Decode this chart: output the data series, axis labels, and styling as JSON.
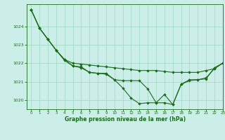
{
  "title": "Graphe pression niveau de la mer (hPa)",
  "background_color": "#cceee8",
  "grid_color": "#aaddcc",
  "line_color": "#1a6b1a",
  "marker_color": "#1a6b1a",
  "xlim": [
    -0.5,
    23
  ],
  "ylim": [
    1019.5,
    1025.2
  ],
  "yticks": [
    1020,
    1021,
    1022,
    1023,
    1024
  ],
  "xticks": [
    0,
    1,
    2,
    3,
    4,
    5,
    6,
    7,
    8,
    9,
    10,
    11,
    12,
    13,
    14,
    15,
    16,
    17,
    18,
    19,
    20,
    21,
    22,
    23
  ],
  "series": [
    [
      1024.9,
      1023.9,
      1023.3,
      1022.7,
      1022.2,
      1022.0,
      1021.95,
      1021.9,
      1021.85,
      1021.8,
      1021.75,
      1021.7,
      1021.65,
      1021.6,
      1021.6,
      1021.6,
      1021.55,
      1021.5,
      1021.5,
      1021.5,
      1021.5,
      1021.6,
      1021.7,
      1022.0
    ],
    [
      1024.9,
      1023.9,
      1023.3,
      1022.7,
      1022.15,
      1021.85,
      1021.75,
      1021.5,
      1021.45,
      1021.4,
      1021.1,
      1021.05,
      1021.05,
      1021.05,
      1020.6,
      1019.85,
      1019.85,
      1019.75,
      1020.85,
      1021.1,
      1021.1,
      1021.2,
      1021.7,
      1022.0
    ],
    [
      1024.9,
      1023.9,
      1023.3,
      1022.7,
      1022.2,
      1021.85,
      1021.8,
      1021.5,
      1021.45,
      1021.45,
      1021.1,
      1020.65,
      1020.1,
      1019.8,
      1019.85,
      1019.85,
      1020.3,
      1019.75,
      1020.85,
      1021.05,
      1021.1,
      1021.15,
      1021.75,
      1022.0
    ]
  ]
}
